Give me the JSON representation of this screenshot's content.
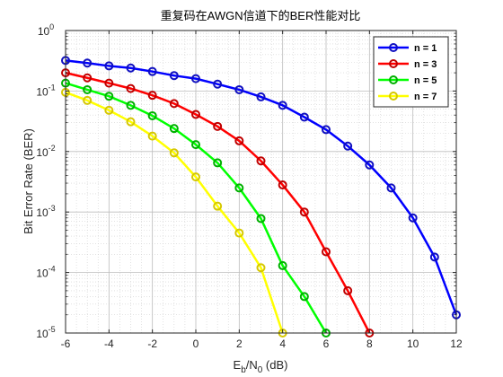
{
  "chart_data": {
    "type": "line",
    "title": "重复码在AWGN信道下的BER性能对比",
    "xlabel": {
      "base": "E",
      "sub1": "b",
      "mid": "/N",
      "sub2": "0",
      "tail": " (dB)"
    },
    "ylabel": "Bit Error Rate (BER)",
    "xlim": [
      -6,
      12
    ],
    "ylim": [
      1e-05,
      1
    ],
    "yscale": "log",
    "grid": true,
    "minor_grid": true,
    "x_ticks": [
      -6,
      -4,
      -2,
      0,
      2,
      4,
      6,
      8,
      10,
      12
    ],
    "x_tick_labels": [
      "-6",
      "-4",
      "-2",
      "0",
      "2",
      "4",
      "6",
      "8",
      "10",
      "12"
    ],
    "y_ticks": [
      {
        "exp": -5,
        "base": "10",
        "sup": "-5"
      },
      {
        "exp": -4,
        "base": "10",
        "sup": "-4"
      },
      {
        "exp": -3,
        "base": "10",
        "sup": "-3"
      },
      {
        "exp": -2,
        "base": "10",
        "sup": "-2"
      },
      {
        "exp": -1,
        "base": "10",
        "sup": "-1"
      },
      {
        "exp": 0,
        "base": "10",
        "sup": "0"
      }
    ],
    "legend_position": "top-right",
    "series": [
      {
        "name": "n = 1",
        "color": "#0000ff",
        "x": [
          -6,
          -5,
          -4,
          -3,
          -2,
          -1,
          0,
          1,
          2,
          3,
          4,
          5,
          6,
          7,
          8,
          9,
          10,
          11,
          12
        ],
        "y": [
          0.32,
          0.29,
          0.26,
          0.24,
          0.21,
          0.18,
          0.16,
          0.13,
          0.105,
          0.08,
          0.058,
          0.037,
          0.023,
          0.0123,
          0.006,
          0.0025,
          0.0008,
          0.00018,
          2e-05
        ]
      },
      {
        "name": "n = 3",
        "color": "#ff0000",
        "x": [
          -6,
          -5,
          -4,
          -3,
          -2,
          -1,
          0,
          1,
          2,
          3,
          4,
          5,
          6,
          7,
          8
        ],
        "y": [
          0.2,
          0.165,
          0.135,
          0.11,
          0.085,
          0.062,
          0.041,
          0.026,
          0.015,
          0.007,
          0.0028,
          0.001,
          0.00022,
          5e-05,
          1e-05
        ]
      },
      {
        "name": "n = 5",
        "color": "#00ff00",
        "x": [
          -6,
          -5,
          -4,
          -3,
          -2,
          -1,
          0,
          1,
          2,
          3,
          4,
          5,
          6
        ],
        "y": [
          0.135,
          0.105,
          0.082,
          0.058,
          0.039,
          0.024,
          0.013,
          0.0065,
          0.0025,
          0.00078,
          0.00013,
          4e-05,
          1e-05
        ]
      },
      {
        "name": "n = 7",
        "color": "#ffff00",
        "x": [
          -6,
          -5,
          -4,
          -3,
          -2,
          -1,
          0,
          1,
          2,
          3,
          4
        ],
        "y": [
          0.095,
          0.07,
          0.048,
          0.031,
          0.018,
          0.0095,
          0.0038,
          0.00125,
          0.00045,
          0.00012,
          1e-05
        ]
      }
    ]
  }
}
